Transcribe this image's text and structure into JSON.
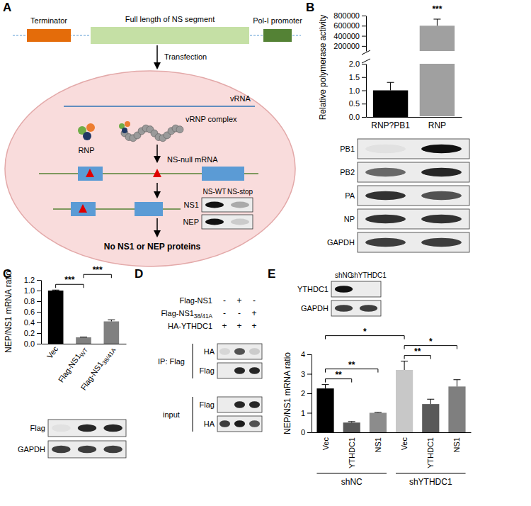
{
  "panel_labels": [
    "A",
    "B",
    "C",
    "D",
    "E"
  ],
  "diagram": {
    "construct": {
      "terminator": "Terminator",
      "segment": "Full length of NS segment",
      "promoter": "Pol-I promoter"
    },
    "step": "Transfection",
    "cell": {
      "vrna": "vRNA",
      "vrnp": "vRNP complex",
      "rnp": "RNP",
      "mrna": "NS-null mRNA",
      "result": "No NS1 or NEP proteins"
    }
  },
  "blots": {
    "A": {
      "lanes": [
        "NS-WT",
        "NS-stop"
      ],
      "rows": [
        {
          "name": "NS1",
          "signal": [
            1,
            0.3
          ]
        },
        {
          "name": "NEP",
          "signal": [
            1,
            0.15
          ]
        }
      ]
    },
    "B": {
      "rows": [
        {
          "name": "PB1",
          "signal": [
            0.05,
            1
          ]
        },
        {
          "name": "PB2",
          "signal": [
            0.6,
            0.9
          ]
        },
        {
          "name": "PA",
          "signal": [
            0.85,
            0.7
          ]
        },
        {
          "name": "NP",
          "signal": [
            0.85,
            0.85
          ]
        },
        {
          "name": "GAPDH",
          "signal": [
            0.8,
            0.8
          ]
        }
      ]
    },
    "C": {
      "rows": [
        {
          "name": "Flag",
          "signal": [
            0.05,
            0.9,
            0.9
          ]
        },
        {
          "name": "GAPDH",
          "signal": [
            0.8,
            0.8,
            0.8
          ]
        }
      ]
    },
    "D": {
      "conditions": [
        {
          "name": "Flag-NS1",
          "marks": [
            "-",
            "+",
            "-"
          ]
        },
        {
          "name": "Flag-NS1",
          "subscript": "38/41A",
          "marks": [
            "-",
            "-",
            "+"
          ]
        },
        {
          "name": "HA-YTHDC1",
          "marks": [
            "+",
            "+",
            "+"
          ]
        }
      ],
      "sections": [
        {
          "label": "IP: Flag",
          "rows": [
            {
              "name": "HA",
              "signal": [
                0.1,
                0.7,
                0.15
              ]
            },
            {
              "name": "Flag",
              "signal": [
                0,
                0.9,
                0.9
              ]
            }
          ]
        },
        {
          "label": "input",
          "rows": [
            {
              "name": "Flag",
              "signal": [
                0,
                0.9,
                0.9
              ]
            },
            {
              "name": "HA",
              "signal": [
                0.8,
                0.95,
                0.7
              ]
            }
          ]
        }
      ]
    },
    "E": {
      "lanes": [
        "shNC",
        "shYTHDC1"
      ],
      "rows": [
        {
          "name": "YTHDC1",
          "signal": [
            1,
            0
          ]
        },
        {
          "name": "GAPDH",
          "signal": [
            0.8,
            0.8
          ]
        }
      ]
    }
  },
  "chart_data": [
    {
      "type": "bar",
      "y_label": "Relative polymerase activity",
      "categories": [
        "RNP?PB1",
        "RNP"
      ],
      "values": [
        1.0,
        600000
      ],
      "errors": [
        0.3,
        130000
      ],
      "colors": [
        "#000000",
        "#a0a0a0"
      ],
      "broken_axis": [
        {
          "ylim": [
            0,
            2
          ],
          "yticks": [
            {
              "value": 0,
              "label": "0.0"
            },
            {
              "value": 0.5,
              "label": "0.5"
            },
            {
              "value": 1,
              "label": "1.0"
            },
            {
              "value": 1.5,
              "label": "1.5"
            },
            {
              "value": 2,
              "label": "2.0"
            }
          ]
        },
        {
          "ylim": [
            100000,
            800000
          ],
          "yticks": [
            200000,
            400000,
            600000,
            800000
          ]
        }
      ],
      "significance": [
        {
          "from": 1,
          "to": 1,
          "label": "***"
        }
      ]
    },
    {
      "type": "bar",
      "y_label": "NEP/NS1 mRNA ratio",
      "categories": [
        "Vec",
        "Flag-NS1",
        "Flag-NS1"
      ],
      "category_subscripts": [
        null,
        "WT",
        "38/41A"
      ],
      "values": [
        1.0,
        0.12,
        0.42
      ],
      "errors": [
        0.01,
        0.005,
        0.03
      ],
      "colors": [
        "#000000",
        "#808080",
        "#808080"
      ],
      "ylim": [
        0,
        1.2
      ],
      "yticks": [
        {
          "value": 0,
          "label": "0.0"
        },
        {
          "value": 0.2,
          "label": "0.2"
        },
        {
          "value": 0.4,
          "label": "0.4"
        },
        {
          "value": 0.6,
          "label": "0.6"
        },
        {
          "value": 0.8,
          "label": "0.8"
        },
        {
          "value": 1,
          "label": "1.0"
        },
        {
          "value": 1.2,
          "label": "1.2"
        }
      ],
      "significance": [
        {
          "from": 0,
          "to": 1,
          "label": "***"
        },
        {
          "from": 1,
          "to": 2,
          "label": "***"
        }
      ]
    },
    {
      "type": "bar",
      "y_label": "NEP/NS1 mRNA ratio",
      "categories": [
        "Vec",
        "YTHDC1",
        "NS1",
        "Vec",
        "YTHDC1",
        "NS1"
      ],
      "groups": [
        {
          "label": "shNC",
          "start": 0,
          "end": 2
        },
        {
          "label": "shYTHDC1",
          "start": 3,
          "end": 5
        }
      ],
      "values": [
        2.25,
        0.5,
        1.0,
        3.2,
        1.45,
        2.35
      ],
      "errors": [
        0.2,
        0.05,
        0.02,
        0.45,
        0.25,
        0.35
      ],
      "colors": [
        "#000000",
        "#595959",
        "#8c8c8c",
        "#c8c8c8",
        "#595959",
        "#7f7f7f"
      ],
      "ylim": [
        0,
        4
      ],
      "yticks": [
        0,
        1,
        2,
        3,
        4
      ],
      "significance": [
        {
          "from": 0,
          "to": 1,
          "label": "**"
        },
        {
          "from": 0,
          "to": 2,
          "label": "**"
        },
        {
          "from": 3,
          "to": 4,
          "label": "**"
        },
        {
          "from": 3,
          "to": 5,
          "label": "*"
        },
        {
          "from": 0,
          "to": 3,
          "label": "*"
        }
      ]
    }
  ]
}
